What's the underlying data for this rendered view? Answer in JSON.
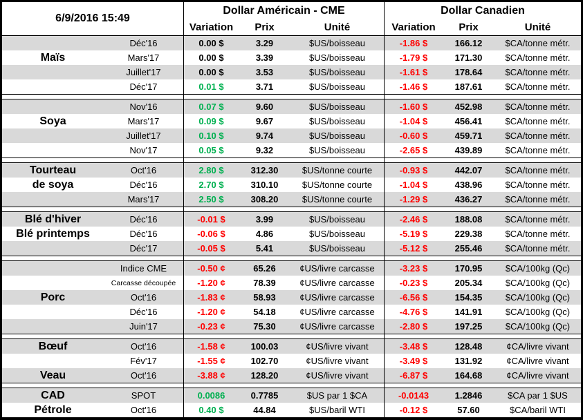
{
  "timestamp": "6/9/2016 15:49",
  "header": {
    "us_title": "Dollar Américain - CME",
    "ca_title": "Dollar Canadien",
    "variation": "Variation",
    "prix": "Prix",
    "unite": "Unité"
  },
  "colors": {
    "positive": "#00B050",
    "negative": "#FF0000",
    "stripe": "#D9D9D9",
    "border": "#000000"
  },
  "groups": [
    {
      "name": "Maïs",
      "rows": [
        {
          "label": "",
          "month": "Déc'16",
          "us_var": "0.00 $",
          "us_dir": "neutral",
          "us_prix": "3.29",
          "us_unit": "$US/boisseau",
          "ca_var": "-1.86 $",
          "ca_dir": "negative",
          "ca_prix": "166.12",
          "ca_unit": "$CA/tonne métr."
        },
        {
          "label": "Maïs",
          "month": "Mars'17",
          "us_var": "0.00 $",
          "us_dir": "neutral",
          "us_prix": "3.39",
          "us_unit": "$US/boisseau",
          "ca_var": "-1.79 $",
          "ca_dir": "negative",
          "ca_prix": "171.30",
          "ca_unit": "$CA/tonne métr."
        },
        {
          "label": "",
          "month": "Juillet'17",
          "us_var": "0.00 $",
          "us_dir": "neutral",
          "us_prix": "3.53",
          "us_unit": "$US/boisseau",
          "ca_var": "-1.61 $",
          "ca_dir": "negative",
          "ca_prix": "178.64",
          "ca_unit": "$CA/tonne métr."
        },
        {
          "label": "",
          "month": "Déc'17",
          "us_var": "0.01 $",
          "us_dir": "positive",
          "us_prix": "3.71",
          "us_unit": "$US/boisseau",
          "ca_var": "-1.46 $",
          "ca_dir": "negative",
          "ca_prix": "187.61",
          "ca_unit": "$CA/tonne métr."
        }
      ]
    },
    {
      "name": "Soya",
      "rows": [
        {
          "label": "",
          "month": "Nov'16",
          "us_var": "0.07 $",
          "us_dir": "positive",
          "us_prix": "9.60",
          "us_unit": "$US/boisseau",
          "ca_var": "-1.60 $",
          "ca_dir": "negative",
          "ca_prix": "452.98",
          "ca_unit": "$CA/tonne métr."
        },
        {
          "label": "Soya",
          "month": "Mars'17",
          "us_var": "0.09 $",
          "us_dir": "positive",
          "us_prix": "9.67",
          "us_unit": "$US/boisseau",
          "ca_var": "-1.04 $",
          "ca_dir": "negative",
          "ca_prix": "456.41",
          "ca_unit": "$CA/tonne métr."
        },
        {
          "label": "",
          "month": "Juillet'17",
          "us_var": "0.10 $",
          "us_dir": "positive",
          "us_prix": "9.74",
          "us_unit": "$US/boisseau",
          "ca_var": "-0.60 $",
          "ca_dir": "negative",
          "ca_prix": "459.71",
          "ca_unit": "$CA/tonne métr."
        },
        {
          "label": "",
          "month": "Nov'17",
          "us_var": "0.05 $",
          "us_dir": "positive",
          "us_prix": "9.32",
          "us_unit": "$US/boisseau",
          "ca_var": "-2.65 $",
          "ca_dir": "negative",
          "ca_prix": "439.89",
          "ca_unit": "$CA/tonne métr."
        }
      ]
    },
    {
      "name": "Tourteau de soya",
      "rows": [
        {
          "label": "Tourteau",
          "month": "Oct'16",
          "us_var": "2.80 $",
          "us_dir": "positive",
          "us_prix": "312.30",
          "us_unit": "$US/tonne courte",
          "ca_var": "-0.93 $",
          "ca_dir": "negative",
          "ca_prix": "442.07",
          "ca_unit": "$CA/tonne métr."
        },
        {
          "label": "de soya",
          "month": "Déc'16",
          "us_var": "2.70 $",
          "us_dir": "positive",
          "us_prix": "310.10",
          "us_unit": "$US/tonne courte",
          "ca_var": "-1.04 $",
          "ca_dir": "negative",
          "ca_prix": "438.96",
          "ca_unit": "$CA/tonne métr."
        },
        {
          "label": "",
          "month": "Mars'17",
          "us_var": "2.50 $",
          "us_dir": "positive",
          "us_prix": "308.20",
          "us_unit": "$US/tonne courte",
          "ca_var": "-1.29 $",
          "ca_dir": "negative",
          "ca_prix": "436.27",
          "ca_unit": "$CA/tonne métr."
        }
      ]
    },
    {
      "name": "Blé",
      "rows": [
        {
          "label": "Blé d'hiver",
          "month": "Déc'16",
          "us_var": "-0.01 $",
          "us_dir": "negative",
          "us_prix": "3.99",
          "us_unit": "$US/boisseau",
          "ca_var": "-2.46 $",
          "ca_dir": "negative",
          "ca_prix": "188.08",
          "ca_unit": "$CA/tonne métr."
        },
        {
          "label": "Blé printemps",
          "month": "Déc'16",
          "us_var": "-0.06 $",
          "us_dir": "negative",
          "us_prix": "4.86",
          "us_unit": "$US/boisseau",
          "ca_var": "-5.19 $",
          "ca_dir": "negative",
          "ca_prix": "229.38",
          "ca_unit": "$CA/tonne métr."
        },
        {
          "label": "",
          "month": "Déc'17",
          "us_var": "-0.05 $",
          "us_dir": "negative",
          "us_prix": "5.41",
          "us_unit": "$US/boisseau",
          "ca_var": "-5.12 $",
          "ca_dir": "negative",
          "ca_prix": "255.46",
          "ca_unit": "$CA/tonne métr."
        }
      ]
    },
    {
      "name": "Porc",
      "rows": [
        {
          "label": "",
          "month": "Indice CME",
          "us_var": "-0.50 ¢",
          "us_dir": "negative",
          "us_prix": "65.26",
          "us_unit": "¢US/livre carcasse",
          "ca_var": "-3.23 $",
          "ca_dir": "negative",
          "ca_prix": "170.95",
          "ca_unit": "$CA/100kg (Qc)"
        },
        {
          "label": "",
          "month": "Carcasse découpée",
          "month_small": true,
          "us_var": "-1.20 ¢",
          "us_dir": "negative",
          "us_prix": "78.39",
          "us_unit": "¢US/livre carcasse",
          "ca_var": "-0.23 $",
          "ca_dir": "negative",
          "ca_prix": "205.34",
          "ca_unit": "$CA/100kg (Qc)"
        },
        {
          "label": "Porc",
          "month": "Oct'16",
          "us_var": "-1.83 ¢",
          "us_dir": "negative",
          "us_prix": "58.93",
          "us_unit": "¢US/livre carcasse",
          "ca_var": "-6.56 $",
          "ca_dir": "negative",
          "ca_prix": "154.35",
          "ca_unit": "$CA/100kg (Qc)"
        },
        {
          "label": "",
          "month": "Déc'16",
          "us_var": "-1.20 ¢",
          "us_dir": "negative",
          "us_prix": "54.18",
          "us_unit": "¢US/livre carcasse",
          "ca_var": "-4.76 $",
          "ca_dir": "negative",
          "ca_prix": "141.91",
          "ca_unit": "$CA/100kg (Qc)"
        },
        {
          "label": "",
          "month": "Juin'17",
          "us_var": "-0.23 ¢",
          "us_dir": "negative",
          "us_prix": "75.30",
          "us_unit": "¢US/livre carcasse",
          "ca_var": "-2.80 $",
          "ca_dir": "negative",
          "ca_prix": "197.25",
          "ca_unit": "$CA/100kg (Qc)"
        }
      ]
    },
    {
      "name": "Bœuf / Veau",
      "rows": [
        {
          "label": "Bœuf",
          "month": "Oct'16",
          "us_var": "-1.58 ¢",
          "us_dir": "negative",
          "us_prix": "100.03",
          "us_unit": "¢US/livre vivant",
          "ca_var": "-3.48 $",
          "ca_dir": "negative",
          "ca_prix": "128.48",
          "ca_unit": "¢CA/livre vivant"
        },
        {
          "label": "",
          "month": "Fév'17",
          "us_var": "-1.55 ¢",
          "us_dir": "negative",
          "us_prix": "102.70",
          "us_unit": "¢US/livre vivant",
          "ca_var": "-3.49 $",
          "ca_dir": "negative",
          "ca_prix": "131.92",
          "ca_unit": "¢CA/livre vivant"
        },
        {
          "label": "Veau",
          "month": "Oct'16",
          "us_var": "-3.88 ¢",
          "us_dir": "negative",
          "us_prix": "128.20",
          "us_unit": "¢US/livre vivant",
          "ca_var": "-6.87 $",
          "ca_dir": "negative",
          "ca_prix": "164.68",
          "ca_unit": "¢CA/livre vivant"
        }
      ]
    },
    {
      "name": "CAD / Pétrole",
      "rows": [
        {
          "label": "CAD",
          "month": "SPOT",
          "us_var": "0.0086",
          "us_dir": "positive",
          "us_prix": "0.7785",
          "us_unit": "$US par 1 $CA",
          "ca_var": "-0.0143",
          "ca_dir": "negative",
          "ca_prix": "1.2846",
          "ca_unit": "$CA par 1 $US"
        },
        {
          "label": "Pétrole",
          "month": "Oct'16",
          "us_var": "0.40 $",
          "us_dir": "positive",
          "us_prix": "44.84",
          "us_unit": "$US/baril WTI",
          "ca_var": "-0.12 $",
          "ca_dir": "negative",
          "ca_prix": "57.60",
          "ca_unit": "$CA/baril WTI"
        }
      ]
    }
  ]
}
